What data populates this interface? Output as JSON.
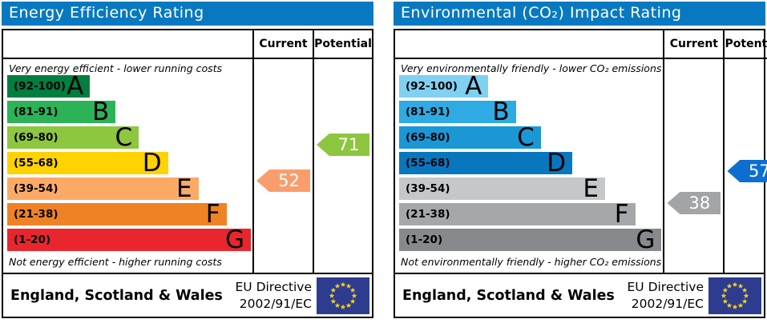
{
  "labels": {
    "current": "Current",
    "potential": "Potential"
  },
  "flag": {
    "name": "eu-flag",
    "background": "#2d3c8f",
    "star_color": "#f2cf1c",
    "star_count": 12
  },
  "chart_data": [
    {
      "type": "bar",
      "subtype": "epc-rating-chart",
      "title": "Energy Efficiency Rating",
      "top_caption": "Very energy efficient - lower running costs",
      "bottom_caption": "Not energy efficient - higher running costs",
      "bands": [
        {
          "label": "(92-100)",
          "letter": "A",
          "min": 92,
          "max": 100,
          "color": "#007e3f",
          "width_pct": 34
        },
        {
          "label": "(81-91)",
          "letter": "B",
          "min": 81,
          "max": 91,
          "color": "#2cb358",
          "width_pct": 44.5
        },
        {
          "label": "(69-80)",
          "letter": "C",
          "min": 69,
          "max": 80,
          "color": "#8dc63f",
          "width_pct": 54
        },
        {
          "label": "(55-68)",
          "letter": "D",
          "min": 55,
          "max": 68,
          "color": "#ffd200",
          "width_pct": 66
        },
        {
          "label": "(39-54)",
          "letter": "E",
          "min": 39,
          "max": 54,
          "color": "#fbaa66",
          "width_pct": 78.5
        },
        {
          "label": "(21-38)",
          "letter": "F",
          "min": 21,
          "max": 38,
          "color": "#ef8224",
          "width_pct": 90
        },
        {
          "label": "(1-20)",
          "letter": "G",
          "min": 1,
          "max": 20,
          "color": "#e9262d",
          "width_pct": 100
        }
      ],
      "current": {
        "value": 52,
        "band": "E",
        "color": "#f99d6d"
      },
      "potential": {
        "value": 71,
        "band": "C",
        "color": "#8dc63f"
      },
      "footer": {
        "region": "England, Scotland & Wales",
        "directive": [
          "EU Directive",
          "2002/91/EC"
        ]
      }
    },
    {
      "type": "bar",
      "subtype": "epc-rating-chart",
      "title": "Environmental (CO₂) Impact Rating",
      "top_caption": "Very environmentally friendly - lower CO₂ emissions",
      "bottom_caption": "Not environmentally friendly - higher CO₂ emissions",
      "bands": [
        {
          "label": "(92-100)",
          "letter": "A",
          "min": 92,
          "max": 100,
          "color": "#7fd0f1",
          "width_pct": 34
        },
        {
          "label": "(81-91)",
          "letter": "B",
          "min": 81,
          "max": 91,
          "color": "#2dabe2",
          "width_pct": 44.5
        },
        {
          "label": "(69-80)",
          "letter": "C",
          "min": 69,
          "max": 80,
          "color": "#1a98d6",
          "width_pct": 54
        },
        {
          "label": "(55-68)",
          "letter": "D",
          "min": 55,
          "max": 68,
          "color": "#0877bd",
          "width_pct": 66
        },
        {
          "label": "(39-54)",
          "letter": "E",
          "min": 39,
          "max": 54,
          "color": "#c6c7c9",
          "width_pct": 78.5
        },
        {
          "label": "(21-38)",
          "letter": "F",
          "min": 21,
          "max": 38,
          "color": "#a5a7aa",
          "width_pct": 90
        },
        {
          "label": "(1-20)",
          "letter": "G",
          "min": 1,
          "max": 20,
          "color": "#87898c",
          "width_pct": 100
        }
      ],
      "current": {
        "value": 38,
        "band": "F",
        "color": "#a2a4a6"
      },
      "potential": {
        "value": 57,
        "band": "D",
        "color": "#0d6ed2"
      },
      "footer": {
        "region": "England, Scotland & Wales",
        "directive": [
          "EU Directive",
          "2002/91/EC"
        ]
      }
    }
  ]
}
